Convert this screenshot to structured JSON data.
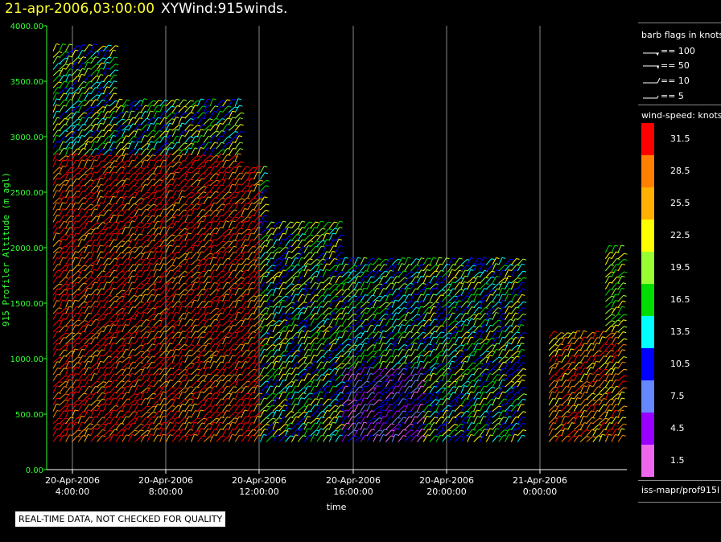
{
  "header": {
    "date": "21-apr-2006,03:00:00",
    "name": "XYWind:915winds."
  },
  "chart_data": {
    "type": "wind-barb",
    "ylabel": "915 Profiler Altitude (m agl)",
    "xlabel": "time",
    "ylim": [
      0,
      4000
    ],
    "y_ticks": [
      "0.00",
      "500.00",
      "1000.00",
      "1500.00",
      "2000.00",
      "2500.00",
      "3000.00",
      "3500.00",
      "4000.00"
    ],
    "x_ticks": [
      {
        "line1": "20-Apr-2006",
        "line2": "4:00:00"
      },
      {
        "line1": "20-Apr-2006",
        "line2": "8:00:00"
      },
      {
        "line1": "20-Apr-2006",
        "line2": "12:00:00"
      },
      {
        "line1": "20-Apr-2006",
        "line2": "16:00:00"
      },
      {
        "line1": "20-Apr-2006",
        "line2": "20:00:00"
      },
      {
        "line1": "21-Apr-2006",
        "line2": "0:00:00"
      }
    ],
    "xlim_hours": [
      3.0,
      27.0
    ],
    "grid": "vertical"
  },
  "legend": {
    "barbs_title": "barb flags in knots",
    "barbs": [
      "== 100",
      "== 50",
      "== 10",
      "== 5"
    ],
    "speed_title": "wind-speed: knots",
    "speeds": [
      {
        "label": "31.5",
        "color": "#ff0000"
      },
      {
        "label": "28.5",
        "color": "#ff8000"
      },
      {
        "label": "25.5",
        "color": "#ffb000"
      },
      {
        "label": "22.5",
        "color": "#ffff00"
      },
      {
        "label": "19.5",
        "color": "#99ff33"
      },
      {
        "label": "16.5",
        "color": "#00dd00"
      },
      {
        "label": "13.5",
        "color": "#00ffff"
      },
      {
        "label": "10.5",
        "color": "#0000ff"
      },
      {
        "label": "7.5",
        "color": "#6688ff"
      },
      {
        "label": "4.5",
        "color": "#9900ff"
      },
      {
        "label": "1.5",
        "color": "#ee66ee"
      }
    ]
  },
  "source": "iss-mapr/prof915l",
  "qc_note": "REAL-TIME DATA, NOT CHECKED FOR QUALITY"
}
